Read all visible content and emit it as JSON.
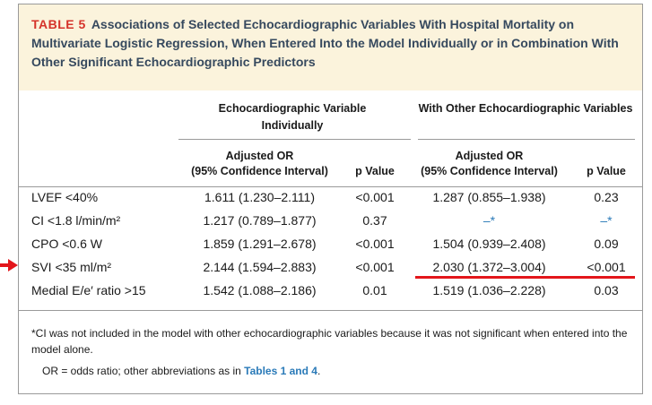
{
  "table": {
    "label": "TABLE 5",
    "title": "Associations of Selected Echocardiographic Variables With Hospital Mortality on Multivariate Logistic Regression, When Entered Into the Model Individually or in Combination With Other Significant Echocardiographic Predictors",
    "group1": "Echocardiographic Variable Individually",
    "group2": "With Other Echocardiographic Variables",
    "col_or_line1": "Adjusted OR",
    "col_or_line2": "(95% Confidence Interval)",
    "col_p": "p Value",
    "rows": [
      {
        "label": "LVEF <40%",
        "or1": "1.611 (1.230–2.111)",
        "p1": "<0.001",
        "or2": "1.287 (0.855–1.938)",
        "p2": "0.23"
      },
      {
        "label": "CI <1.8 l/min/m²",
        "or1": "1.217 (0.789–1.877)",
        "p1": "0.37",
        "or2": "–*",
        "p2": "–*"
      },
      {
        "label": "CPO <0.6 W",
        "or1": "1.859 (1.291–2.678)",
        "p1": "<0.001",
        "or2": "1.504 (0.939–2.408)",
        "p2": "0.09"
      },
      {
        "label": "SVI <35 ml/m²",
        "or1": "2.144 (1.594–2.883)",
        "p1": "<0.001",
        "or2": "2.030 (1.372–3.004)",
        "p2": "<0.001"
      },
      {
        "label": "Medial E/e′ ratio >15",
        "or1": "1.542 (1.088–2.186)",
        "p1": "0.01",
        "or2": "1.519 (1.036–2.228)",
        "p2": "0.03"
      }
    ],
    "footnote1": "*CI was not included in the model with other echocardiographic variables because it was not significant when entered into the model alone.",
    "footnote2_text": "OR = odds ratio; other abbreviations as in ",
    "footnote2_link": "Tables 1 and 4",
    "footnote2_end": "."
  },
  "annotation": {
    "arrow_color": "#e3161b",
    "underline_color": "#e3161b"
  }
}
